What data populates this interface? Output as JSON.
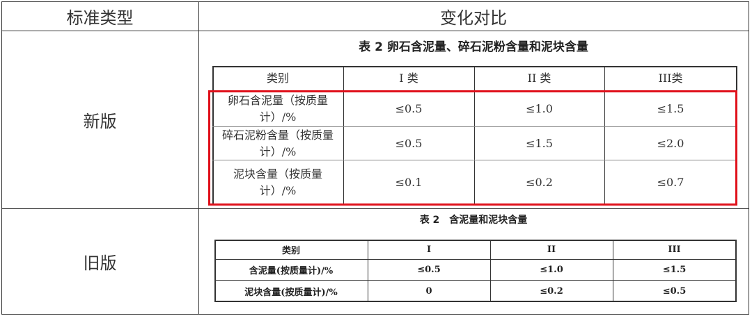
{
  "outer": {
    "headers": [
      "标准类型",
      "变化对比"
    ],
    "rows": [
      "新版",
      "旧版"
    ]
  },
  "new_table": {
    "title": "表 2 卵石含泥量、碎石泥粉含量和泥块含量",
    "columns": [
      "类别",
      "I 类",
      "II 类",
      "III类"
    ],
    "rows": [
      {
        "label": "卵石含泥量（按质量计）/%",
        "values": [
          "≤0.5",
          "≤1.0",
          "≤1.5"
        ]
      },
      {
        "label": "碎石泥粉含量（按质量计）/%",
        "values": [
          "≤0.5",
          "≤1.5",
          "≤2.0"
        ]
      },
      {
        "label": "泥块含量（按质量计）/%",
        "values": [
          "≤0.1",
          "≤0.2",
          "≤0.7"
        ]
      }
    ],
    "highlight_color": "#e0101a"
  },
  "old_table": {
    "title": "表 2　含泥量和泥块含量",
    "columns": [
      "类别",
      "I",
      "II",
      "III"
    ],
    "rows": [
      {
        "label": "含泥量(按质量计)/%",
        "values": [
          "≤0.5",
          "≤1.0",
          "≤1.5"
        ]
      },
      {
        "label": "泥块含量(按质量计)/%",
        "values": [
          "0",
          "≤0.2",
          "≤0.5"
        ]
      }
    ]
  }
}
